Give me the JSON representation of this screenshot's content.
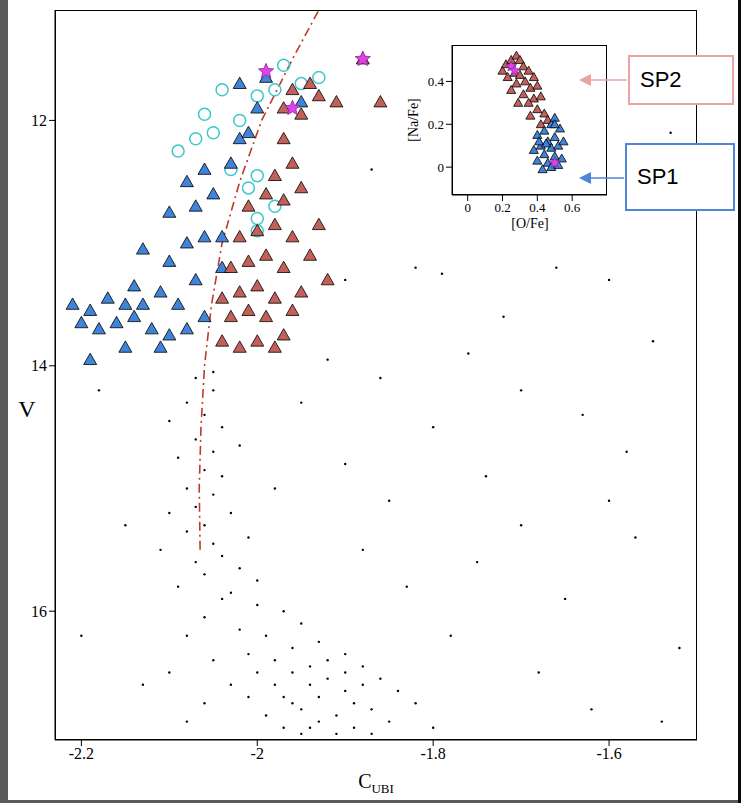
{
  "chart_data": [
    {
      "type": "scatter",
      "x_label": "C",
      "x_label_subscript": "UBI",
      "y_label": "V",
      "xlim": [
        -2.23,
        -1.5
      ],
      "ylim": [
        17.05,
        11.1
      ],
      "xticks": [
        -2.2,
        -2,
        -1.8,
        -1.6
      ],
      "yticks": [
        12,
        14,
        16
      ],
      "annotations": [
        {
          "text": "SP2",
          "color": "#e8a3a3"
        },
        {
          "text": "SP1",
          "color": "#4f86d6"
        }
      ],
      "series": [
        {
          "color": "#000000",
          "marker": "dot",
          "x": [
            -2.07,
            -2.05,
            -2.08,
            -2.06,
            -2.04,
            -2.07,
            -2.05,
            -2.09,
            -2.06,
            -2.04,
            -2.08,
            -2.05,
            -2.07,
            -2.03,
            -2.06,
            -2.08,
            -2.05,
            -2.04,
            -2.07,
            -2.02,
            -2.06,
            -2.09,
            -2.03,
            -2.05,
            -2.1,
            -2.02,
            -2.1,
            -2.01,
            -2.11,
            -2.0,
            -2.04,
            -2.0,
            -1.97,
            -2.06,
            -1.95,
            -2.02,
            -1.99,
            -2.08,
            -1.93,
            -1.96,
            -2.01,
            -1.9,
            -2.05,
            -1.98,
            -1.94,
            -1.88,
            -2.0,
            -1.96,
            -1.92,
            -1.86,
            -2.03,
            -1.98,
            -1.94,
            -1.9,
            -1.84,
            -2.01,
            -1.97,
            -1.93,
            -1.89,
            -1.87,
            -1.95,
            -1.99,
            -1.91,
            -1.85,
            -1.93,
            -1.97,
            -1.89,
            -1.95,
            -1.91,
            -1.87,
            -2.06,
            -2.1,
            -2.08,
            -1.82,
            -1.8,
            -1.92,
            -1.96,
            -1.9,
            -1.94,
            -1.88,
            -2.18,
            -2.15,
            -2.2,
            -1.95,
            -1.9,
            -1.85,
            -1.8,
            -1.75,
            -1.7,
            -1.65,
            -1.6,
            -1.55,
            -1.52,
            -1.58,
            -1.62,
            -1.72,
            -1.78,
            -1.82,
            -1.68,
            -1.74,
            -1.88,
            -1.92,
            -1.86,
            -1.57,
            -1.66,
            -1.76,
            -1.83,
            -1.7,
            -1.63,
            -1.53,
            -1.9,
            -1.98,
            -2.13,
            -1.54,
            -1.6,
            -1.79,
            -1.87
          ],
          "values": [
            14.1,
            14.2,
            14.3,
            14.4,
            14.5,
            14.6,
            14.7,
            14.75,
            14.85,
            14.9,
            15.0,
            15.05,
            15.15,
            15.2,
            15.3,
            15.35,
            15.45,
            15.55,
            15.6,
            15.65,
            15.7,
            15.8,
            15.85,
            14.05,
            14.45,
            14.65,
            15.2,
            15.4,
            15.5,
            15.75,
            15.9,
            15.95,
            16.0,
            16.05,
            16.1,
            16.15,
            16.2,
            16.2,
            16.25,
            16.3,
            16.35,
            16.35,
            16.4,
            16.4,
            16.45,
            16.45,
            16.5,
            16.5,
            16.55,
            16.55,
            16.6,
            16.6,
            16.6,
            16.65,
            16.65,
            16.7,
            16.7,
            16.7,
            16.75,
            16.8,
            16.8,
            16.85,
            16.85,
            16.9,
            16.9,
            16.95,
            16.95,
            17.0,
            17.0,
            17.0,
            16.75,
            16.5,
            16.9,
            16.75,
            16.95,
            16.4,
            16.75,
            16.5,
            16.95,
            16.6,
            14.2,
            15.3,
            16.2,
            14.3,
            14.8,
            15.1,
            14.5,
            15.6,
            14.2,
            15.9,
            13.3,
            13.8,
            16.3,
            14.7,
            16.8,
            13.6,
            16.2,
            13.2,
            16.5,
            14.9,
            15.5,
            13.95,
            14.1,
            15.4,
            13.2,
            13.9,
            15.8,
            15.3,
            14.4,
            12.1,
            13.3,
            15.0,
            16.6,
            16.9,
            15.1,
            13.25,
            12.4
          ]
        },
        {
          "type": "line",
          "color": "#c0392b",
          "line_style": "dashdot",
          "x": [
            -2.065,
            -2.066,
            -2.064,
            -2.06,
            -2.052,
            -2.04,
            -2.02,
            -1.995,
            -1.96,
            -1.93
          ],
          "values": [
            15.5,
            15,
            14.5,
            14,
            13.5,
            13,
            12.5,
            12,
            11.5,
            11.1
          ]
        },
        {
          "color": "#3cc8c8",
          "marker": "open_circle",
          "x": [
            -2.09,
            -2.07,
            -2.05,
            -2.02,
            -2.06,
            -2.0,
            -1.98,
            -1.95,
            -1.93,
            -2.03,
            -2.0,
            -2.01,
            -2.0,
            -1.98,
            -2.0,
            -1.97,
            -2.04
          ],
          "values": [
            12.25,
            12.15,
            12.1,
            12.0,
            11.95,
            11.8,
            11.75,
            11.7,
            11.65,
            12.4,
            12.45,
            12.55,
            12.8,
            12.7,
            12.9,
            11.55,
            11.75
          ]
        },
        {
          "name": "SP1",
          "color": "#3f84d8",
          "marker": "triangle",
          "x": [
            -2.21,
            -2.19,
            -2.17,
            -2.15,
            -2.13,
            -2.2,
            -2.18,
            -2.16,
            -2.14,
            -2.12,
            -2.1,
            -2.19,
            -2.15,
            -2.11,
            -2.08,
            -2.06,
            -2.09,
            -2.11,
            -2.14,
            -2.07,
            -2.1,
            -2.13,
            -2.08,
            -2.06,
            -2.1,
            -2.07,
            -2.05,
            -2.08,
            -2.06,
            -2.03,
            -2.02,
            -2.01,
            -2.0,
            -1.99,
            -2.02,
            -1.95,
            -2.04,
            -2.04
          ],
          "values": [
            13.5,
            13.55,
            13.45,
            13.5,
            13.5,
            13.65,
            13.7,
            13.65,
            13.6,
            13.7,
            13.75,
            13.95,
            13.85,
            13.85,
            13.7,
            13.6,
            13.5,
            13.4,
            13.35,
            13.3,
            13.15,
            13.05,
            13.0,
            12.95,
            12.75,
            12.7,
            12.6,
            12.5,
            12.4,
            12.35,
            12.15,
            12.1,
            11.9,
            11.65,
            11.7,
            11.85,
            12.95,
            13.2
          ]
        },
        {
          "name": "SP2",
          "color": "#c4605a",
          "marker": "triangle",
          "x": [
            -2.04,
            -2.02,
            -2.0,
            -1.98,
            -1.97,
            -2.03,
            -2.01,
            -1.99,
            -1.96,
            -2.04,
            -2.02,
            -2.0,
            -1.98,
            -1.95,
            -1.92,
            -2.03,
            -2.01,
            -1.99,
            -1.97,
            -1.94,
            -2.02,
            -2.0,
            -1.98,
            -1.96,
            -1.93,
            -2.01,
            -1.99,
            -1.97,
            -1.95,
            -1.98,
            -1.96,
            -1.97,
            -1.96,
            -1.94,
            -1.93,
            -1.91,
            -1.86,
            -1.88,
            -1.97,
            -1.95
          ],
          "values": [
            13.8,
            13.85,
            13.8,
            13.85,
            13.75,
            13.6,
            13.55,
            13.6,
            13.55,
            13.45,
            13.4,
            13.35,
            13.45,
            13.4,
            13.3,
            13.2,
            13.15,
            13.1,
            13.2,
            13.1,
            12.95,
            12.9,
            12.85,
            12.95,
            12.85,
            12.7,
            12.6,
            12.65,
            12.55,
            12.45,
            12.35,
            12.15,
            11.75,
            11.7,
            11.8,
            11.85,
            11.85,
            11.5,
            11.9,
            11.95
          ]
        },
        {
          "color": "#e040e8",
          "marker": "star",
          "x": [
            -1.99,
            -1.96,
            -1.88
          ],
          "values": [
            11.6,
            11.9,
            11.5
          ]
        }
      ]
    },
    {
      "type": "scatter",
      "x_label": "[O/Fe]",
      "y_label": "[Na/Fe]",
      "xlim": [
        -0.09,
        0.8
      ],
      "ylim": [
        -0.13,
        0.57
      ],
      "xticks": [
        0,
        0.2,
        0.4,
        0.6
      ],
      "yticks": [
        0,
        0.2,
        0.4
      ],
      "series": [
        {
          "name": "SP2",
          "color": "#c4605a",
          "marker": "triangle",
          "x": [
            0.2,
            0.22,
            0.25,
            0.28,
            0.3,
            0.32,
            0.27,
            0.23,
            0.3,
            0.35,
            0.38,
            0.33,
            0.28,
            0.36,
            0.4,
            0.25,
            0.32,
            0.38,
            0.42,
            0.35,
            0.29,
            0.4,
            0.44,
            0.36,
            0.42,
            0.46
          ],
          "values": [
            0.45,
            0.48,
            0.5,
            0.52,
            0.5,
            0.47,
            0.44,
            0.42,
            0.43,
            0.45,
            0.42,
            0.4,
            0.39,
            0.37,
            0.38,
            0.36,
            0.34,
            0.32,
            0.33,
            0.3,
            0.3,
            0.27,
            0.25,
            0.24,
            0.2,
            0.22
          ]
        },
        {
          "name": "SP1",
          "color": "#3f84d8",
          "marker": "triangle",
          "x": [
            0.4,
            0.44,
            0.48,
            0.5,
            0.42,
            0.46,
            0.5,
            0.53,
            0.38,
            0.44,
            0.48,
            0.52,
            0.55,
            0.4,
            0.46,
            0.5,
            0.54,
            0.43,
            0.48,
            0.52,
            0.45,
            0.5,
            0.41
          ],
          "values": [
            0.15,
            0.17,
            0.2,
            0.23,
            0.1,
            0.12,
            0.14,
            0.18,
            0.08,
            0.06,
            0.09,
            0.1,
            0.12,
            0.03,
            0.02,
            0.05,
            0.04,
            -0.01,
            0.0,
            0.01,
            0.11,
            0.2,
            0.12
          ]
        },
        {
          "color": "#e040e8",
          "marker": "star",
          "x": [
            0.25,
            0.27,
            0.5
          ],
          "values": [
            0.47,
            0.45,
            0.02
          ]
        }
      ]
    }
  ]
}
